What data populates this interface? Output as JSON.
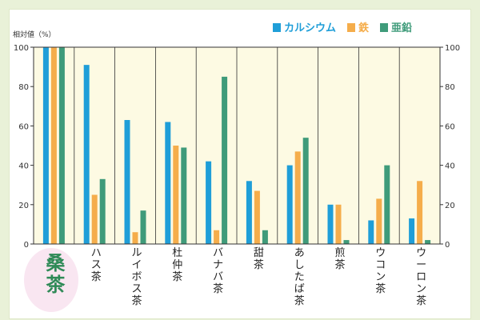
{
  "chart_data": {
    "type": "bar",
    "ylabel": "相対値（%）",
    "ylim": [
      0,
      100
    ],
    "yticks": [
      0,
      20,
      40,
      60,
      80,
      100
    ],
    "grid": false,
    "legend_position": "top-right",
    "categories": [
      "桑茶",
      "ハス茶",
      "ルイボス茶",
      "杜仲茶",
      "バナバ茶",
      "甜茶",
      "あしたば茶",
      "煎茶",
      "ウコン茶",
      "ウーロン茶"
    ],
    "highlight_category": "桑茶",
    "series": [
      {
        "name": "カルシウム",
        "color": "#1f9ed8",
        "values": [
          100,
          91,
          63,
          62,
          42,
          32,
          40,
          20,
          12,
          13
        ]
      },
      {
        "name": "鉄",
        "color": "#f5ad4b",
        "values": [
          100,
          25,
          6,
          50,
          7,
          27,
          47,
          20,
          23,
          32
        ]
      },
      {
        "name": "亜鉛",
        "color": "#3f9b7a",
        "values": [
          100,
          33,
          17,
          49,
          85,
          7,
          54,
          2,
          40,
          2
        ]
      }
    ]
  }
}
